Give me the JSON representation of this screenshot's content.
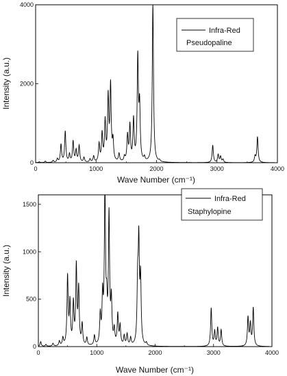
{
  "chart_data": [
    {
      "type": "line",
      "title": "",
      "xlabel": "Wave Number (cm⁻¹)",
      "ylabel": "Intensity (a.u.)",
      "xlim": [
        0,
        4000
      ],
      "ylim": [
        0,
        4000
      ],
      "xticks": [
        "0",
        "1000",
        "2000",
        "3000",
        "4000"
      ],
      "yticks": [
        "0",
        "2000",
        "4000"
      ],
      "legend": {
        "placement": "top-right",
        "entries": [
          "Infra-Red"
        ],
        "annotation": "Pseudopaline"
      },
      "grid": false,
      "series": [
        {
          "name": "Infra-Red",
          "color": "#000000",
          "peaks": [
            {
              "x": 60,
              "y": 20
            },
            {
              "x": 160,
              "y": 35
            },
            {
              "x": 290,
              "y": 50
            },
            {
              "x": 360,
              "y": 90
            },
            {
              "x": 420,
              "y": 450
            },
            {
              "x": 490,
              "y": 780
            },
            {
              "x": 560,
              "y": 200
            },
            {
              "x": 620,
              "y": 530
            },
            {
              "x": 670,
              "y": 300
            },
            {
              "x": 720,
              "y": 420
            },
            {
              "x": 800,
              "y": 120
            },
            {
              "x": 900,
              "y": 80
            },
            {
              "x": 960,
              "y": 150
            },
            {
              "x": 1050,
              "y": 450
            },
            {
              "x": 1100,
              "y": 700
            },
            {
              "x": 1150,
              "y": 1000
            },
            {
              "x": 1200,
              "y": 1600
            },
            {
              "x": 1240,
              "y": 1900
            },
            {
              "x": 1280,
              "y": 500
            },
            {
              "x": 1380,
              "y": 200
            },
            {
              "x": 1470,
              "y": 120
            },
            {
              "x": 1520,
              "y": 650
            },
            {
              "x": 1560,
              "y": 900
            },
            {
              "x": 1620,
              "y": 1050
            },
            {
              "x": 1690,
              "y": 2600
            },
            {
              "x": 1720,
              "y": 1350
            },
            {
              "x": 1800,
              "y": 100
            },
            {
              "x": 1940,
              "y": 4000
            },
            {
              "x": 2050,
              "y": 40
            },
            {
              "x": 2930,
              "y": 440
            },
            {
              "x": 3020,
              "y": 200
            },
            {
              "x": 3060,
              "y": 150
            },
            {
              "x": 3100,
              "y": 80
            },
            {
              "x": 3630,
              "y": 150
            },
            {
              "x": 3670,
              "y": 650
            }
          ]
        }
      ]
    },
    {
      "type": "line",
      "title": "",
      "xlabel": "Wave Number (cm⁻¹)",
      "ylabel": "Intensity (a.u.)",
      "xlim": [
        0,
        4000
      ],
      "ylim": [
        0,
        1600
      ],
      "xticks": [
        "0",
        "1000",
        "2000",
        "3000",
        "4000"
      ],
      "yticks": [
        "0",
        "500",
        "1000",
        "1500"
      ],
      "legend": {
        "placement": "top-right",
        "entries": [
          "Infra-Red"
        ],
        "annotation": "Staphylopine"
      },
      "grid": false,
      "series": [
        {
          "name": "Infra-Red",
          "color": "#000000",
          "peaks": [
            {
              "x": 40,
              "y": 50
            },
            {
              "x": 130,
              "y": 20
            },
            {
              "x": 250,
              "y": 30
            },
            {
              "x": 360,
              "y": 50
            },
            {
              "x": 420,
              "y": 80
            },
            {
              "x": 500,
              "y": 720
            },
            {
              "x": 540,
              "y": 440
            },
            {
              "x": 600,
              "y": 430
            },
            {
              "x": 650,
              "y": 820
            },
            {
              "x": 690,
              "y": 580
            },
            {
              "x": 750,
              "y": 220
            },
            {
              "x": 830,
              "y": 80
            },
            {
              "x": 960,
              "y": 100
            },
            {
              "x": 1060,
              "y": 300
            },
            {
              "x": 1100,
              "y": 480
            },
            {
              "x": 1140,
              "y": 1600
            },
            {
              "x": 1170,
              "y": 350
            },
            {
              "x": 1210,
              "y": 1340
            },
            {
              "x": 1250,
              "y": 450
            },
            {
              "x": 1300,
              "y": 150
            },
            {
              "x": 1360,
              "y": 320
            },
            {
              "x": 1400,
              "y": 200
            },
            {
              "x": 1470,
              "y": 100
            },
            {
              "x": 1520,
              "y": 120
            },
            {
              "x": 1580,
              "y": 80
            },
            {
              "x": 1700,
              "y": 600
            },
            {
              "x": 1720,
              "y": 1020
            },
            {
              "x": 1750,
              "y": 670
            },
            {
              "x": 1850,
              "y": 30
            },
            {
              "x": 2960,
              "y": 400
            },
            {
              "x": 3020,
              "y": 150
            },
            {
              "x": 3070,
              "y": 190
            },
            {
              "x": 3130,
              "y": 170
            },
            {
              "x": 3590,
              "y": 300
            },
            {
              "x": 3630,
              "y": 230
            },
            {
              "x": 3680,
              "y": 400
            }
          ]
        }
      ]
    }
  ]
}
